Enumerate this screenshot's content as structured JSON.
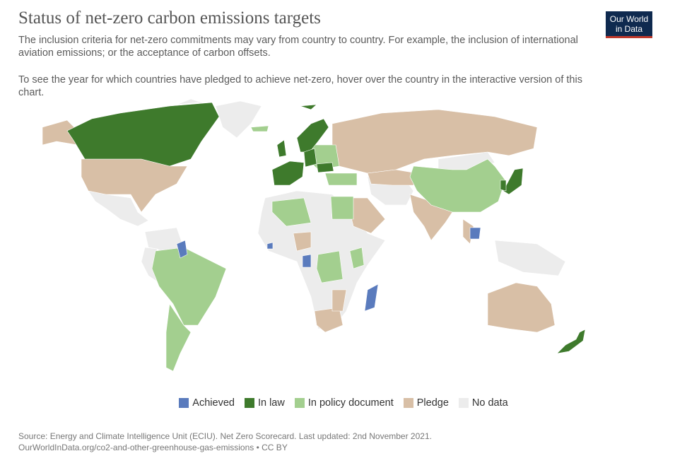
{
  "header": {
    "title": "Status of net-zero carbon emissions targets",
    "subtitle": "The inclusion criteria for net-zero commitments may vary from country to country. For example, the inclusion of international aviation emissions; or the acceptance of carbon offsets.",
    "note": "To see the year for which countries have pledged to achieve net-zero, hover over the country in the interactive version of this chart."
  },
  "logo": {
    "line1": "Our World",
    "line2": "in Data"
  },
  "legend": [
    {
      "label": "Achieved",
      "color": "#5a7bbd"
    },
    {
      "label": "In law",
      "color": "#3e7a2c"
    },
    {
      "label": "In policy document",
      "color": "#a3cf8f"
    },
    {
      "label": "Pledge",
      "color": "#d8bfa6"
    },
    {
      "label": "No data",
      "color": "#ececec"
    }
  ],
  "footer": {
    "source": "Source: Energy and Climate Intelligence Unit (ECIU). Net Zero Scorecard. Last updated: 2nd November 2021.",
    "url": "OurWorldInData.org/co2-and-other-greenhouse-gas-emissions • CC BY"
  }
}
